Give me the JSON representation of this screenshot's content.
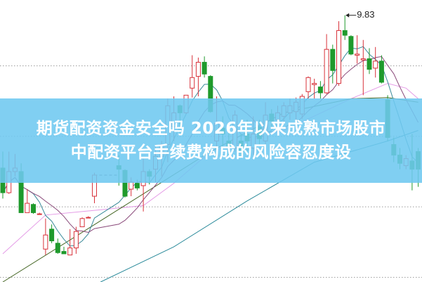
{
  "banner": {
    "line1": "期货配资资金安全吗 2026年以来成熟市场股市",
    "line2": "中配资平台手续费构成的风险容忍度设",
    "color": "#6ec8f0"
  },
  "chart_data": {
    "type": "candlestick",
    "title": "",
    "xlabel": "",
    "ylabel": "",
    "ylim": [
      7.56,
      9.96
    ],
    "grid": true,
    "gridlines": [
      9.4,
      8.8,
      8.2,
      7.6
    ],
    "colors": {
      "up": "#d8323a",
      "down": "#1f9a2c",
      "ma5": "#3a8a9a",
      "ma10": "#8a4a7a",
      "pink": "#e49ae6",
      "olive": "#4a6a2a",
      "teal": "#2a8a9a",
      "grid": "#9a9a9a"
    },
    "peak_annotation": {
      "label": "9.83",
      "value": 9.83,
      "index": 56
    },
    "candles": [
      {
        "o": 8.53,
        "h": 8.67,
        "l": 8.27,
        "c": 8.32
      },
      {
        "o": 8.32,
        "h": 8.67,
        "l": 8.31,
        "c": 8.5
      },
      {
        "o": 8.5,
        "h": 8.65,
        "l": 8.46,
        "c": 8.53
      },
      {
        "o": 8.5,
        "h": 8.57,
        "l": 8.15,
        "c": 8.15
      },
      {
        "o": 8.15,
        "h": 8.35,
        "l": 8.15,
        "c": 8.23
      },
      {
        "o": 8.22,
        "h": 8.23,
        "l": 8.14,
        "c": 8.15
      },
      {
        "o": 8.14,
        "h": 8.15,
        "l": 8.14,
        "c": 8.14
      },
      {
        "o": 7.84,
        "h": 8.1,
        "l": 7.79,
        "c": 7.96
      },
      {
        "o": 8.01,
        "h": 8.05,
        "l": 7.89,
        "c": 7.91
      },
      {
        "o": 7.89,
        "h": 7.93,
        "l": 7.8,
        "c": 7.81
      },
      {
        "o": 7.82,
        "h": 7.86,
        "l": 7.8,
        "c": 7.8
      },
      {
        "o": 7.79,
        "h": 8.01,
        "l": 7.79,
        "c": 7.85
      },
      {
        "o": 7.85,
        "h": 8.03,
        "l": 7.8,
        "c": 7.99
      },
      {
        "o": 8.03,
        "h": 8.11,
        "l": 8.03,
        "c": 8.1
      },
      {
        "o": 8.11,
        "h": 8.12,
        "l": 8.11,
        "c": 8.11
      },
      {
        "o": 8.29,
        "h": 8.49,
        "l": 8.23,
        "c": 8.47
      },
      null,
      null,
      null,
      {
        "o": 8.55,
        "h": 8.64,
        "l": 8.38,
        "c": 8.52
      },
      {
        "o": 8.51,
        "h": 8.52,
        "l": 8.28,
        "c": 8.29
      },
      {
        "o": 8.35,
        "h": 8.45,
        "l": 8.29,
        "c": 8.41
      },
      {
        "o": 8.4,
        "h": 8.43,
        "l": 8.34,
        "c": 8.36
      },
      {
        "o": 8.38,
        "h": 8.61,
        "l": 8.16,
        "c": 8.5
      },
      {
        "o": 8.5,
        "h": 8.52,
        "l": 8.39,
        "c": 8.46
      },
      {
        "o": 8.52,
        "h": 8.73,
        "l": 8.41,
        "c": 8.63
      },
      {
        "o": 8.63,
        "h": 8.76,
        "l": 8.46,
        "c": 8.73
      },
      {
        "o": 8.73,
        "h": 9.12,
        "l": 8.58,
        "c": 9.06
      },
      {
        "o": 8.88,
        "h": 9.14,
        "l": 8.76,
        "c": 9.0
      },
      {
        "o": 9.06,
        "h": 9.07,
        "l": 8.82,
        "c": 9.0
      },
      {
        "o": 9.0,
        "h": 9.15,
        "l": 8.99,
        "c": 9.15
      },
      {
        "o": 9.21,
        "h": 9.49,
        "l": 9.13,
        "c": 9.3
      },
      {
        "o": 9.31,
        "h": 9.47,
        "l": 9.14,
        "c": 9.43
      },
      {
        "o": 9.43,
        "h": 9.48,
        "l": 9.3,
        "c": 9.33
      },
      {
        "o": 9.31,
        "h": 9.32,
        "l": 9.0,
        "c": 9.01
      },
      {
        "o": 8.76,
        "h": 9.14,
        "l": 8.7,
        "c": 8.91
      },
      {
        "o": 8.87,
        "h": 8.97,
        "l": 8.7,
        "c": 8.82
      },
      {
        "o": 8.76,
        "h": 8.85,
        "l": 8.64,
        "c": 8.71
      },
      {
        "o": 8.7,
        "h": 9.02,
        "l": 8.67,
        "c": 8.98
      },
      {
        "o": 8.76,
        "h": 8.82,
        "l": 8.61,
        "c": 8.67
      },
      {
        "o": 8.82,
        "h": 8.94,
        "l": 8.67,
        "c": 8.76
      },
      {
        "o": 8.7,
        "h": 8.97,
        "l": 8.64,
        "c": 8.82
      },
      {
        "o": 8.88,
        "h": 8.94,
        "l": 8.73,
        "c": 8.78
      },
      {
        "o": 8.76,
        "h": 9.09,
        "l": 8.73,
        "c": 8.98
      },
      {
        "o": 8.99,
        "h": 9.03,
        "l": 8.88,
        "c": 8.93
      },
      {
        "o": 8.94,
        "h": 9.06,
        "l": 8.89,
        "c": 9.0
      },
      {
        "o": 8.97,
        "h": 9.09,
        "l": 8.91,
        "c": 9.06
      },
      {
        "o": 9.0,
        "h": 9.12,
        "l": 8.94,
        "c": 9.06
      },
      {
        "o": 9.01,
        "h": 9.13,
        "l": 8.94,
        "c": 9.09
      },
      {
        "o": 8.99,
        "h": 9.16,
        "l": 8.95,
        "c": 9.14
      },
      {
        "o": 9.18,
        "h": 9.31,
        "l": 9.12,
        "c": 9.3
      },
      {
        "o": 9.24,
        "h": 9.29,
        "l": 9.12,
        "c": 9.25
      },
      {
        "o": 9.22,
        "h": 9.27,
        "l": 9.12,
        "c": 9.17
      },
      {
        "o": 9.17,
        "h": 9.67,
        "l": 9.16,
        "c": 9.54
      },
      {
        "o": 9.54,
        "h": 9.58,
        "l": 9.25,
        "c": 9.36
      },
      {
        "o": 9.25,
        "h": 9.78,
        "l": 9.23,
        "c": 9.7
      },
      {
        "o": 9.7,
        "h": 9.83,
        "l": 9.62,
        "c": 9.66
      },
      {
        "o": 9.65,
        "h": 9.66,
        "l": 9.49,
        "c": 9.5
      },
      {
        "o": 9.49,
        "h": 9.66,
        "l": 9.42,
        "c": 9.5
      },
      {
        "o": 9.45,
        "h": 9.62,
        "l": 9.15,
        "c": 9.46
      },
      {
        "o": 9.46,
        "h": 9.55,
        "l": 9.33,
        "c": 9.37
      },
      {
        "o": 9.38,
        "h": 9.56,
        "l": 9.3,
        "c": 9.44
      },
      {
        "o": 9.44,
        "h": 9.49,
        "l": 9.25,
        "c": 9.26
      },
      {
        "o": 9.11,
        "h": 9.15,
        "l": 8.76,
        "c": 8.79
      },
      {
        "o": 8.73,
        "h": 8.79,
        "l": 8.58,
        "c": 8.64
      },
      {
        "o": 8.64,
        "h": 8.7,
        "l": 8.52,
        "c": 8.57
      },
      {
        "o": 8.55,
        "h": 8.64,
        "l": 8.52,
        "c": 8.61
      },
      {
        "o": 8.59,
        "h": 8.82,
        "l": 8.34,
        "c": 8.52
      },
      {
        "o": 8.67,
        "h": 8.7,
        "l": 8.37,
        "c": 8.52
      }
    ],
    "long_ma_series": [
      {
        "key": "pink",
        "points": [
          [
            0,
            7.8
          ],
          [
            7,
            8.13
          ],
          [
            23,
            8.21
          ],
          [
            28,
            8.4
          ],
          [
            34,
            8.67
          ],
          [
            46,
            8.85
          ],
          [
            57,
            9.12
          ],
          [
            63,
            9.25
          ],
          [
            66,
            9.21
          ],
          [
            68,
            9.12
          ]
        ]
      },
      {
        "key": "olive",
        "points": [
          [
            0,
            7.56
          ],
          [
            12,
            7.95
          ],
          [
            23,
            8.31
          ],
          [
            34,
            8.67
          ],
          [
            46,
            9.0
          ],
          [
            57,
            9.12
          ],
          [
            63,
            9.13
          ],
          [
            68,
            9.09
          ]
        ]
      },
      {
        "key": "teal",
        "points": [
          [
            16,
            7.56
          ],
          [
            28,
            7.86
          ],
          [
            40,
            8.25
          ],
          [
            51,
            8.58
          ],
          [
            63,
            8.76
          ],
          [
            68,
            8.85
          ]
        ]
      }
    ]
  }
}
